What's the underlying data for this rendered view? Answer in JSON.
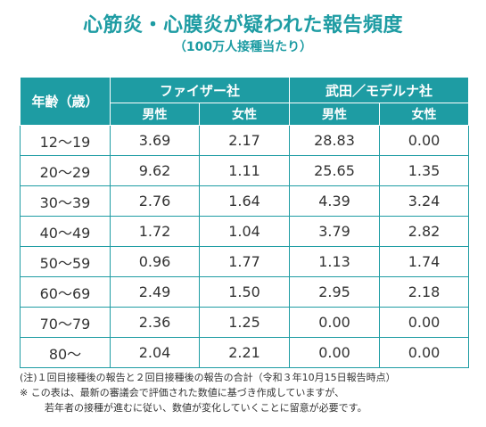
{
  "title": "心筋炎・心膜炎が疑われた報告頻度",
  "subtitle": "（100万人接種当たり）",
  "table": {
    "age_header": "年齢（歳）",
    "group_headers": [
      "ファイザー社",
      "武田／モデルナ社"
    ],
    "sub_headers": [
      "男性",
      "女性",
      "男性",
      "女性"
    ],
    "rows": [
      {
        "age": "12〜19",
        "values": [
          "3.69",
          "2.17",
          "28.83",
          "0.00"
        ]
      },
      {
        "age": "20〜29",
        "values": [
          "9.62",
          "1.11",
          "25.65",
          "1.35"
        ]
      },
      {
        "age": "30〜39",
        "values": [
          "2.76",
          "1.64",
          "4.39",
          "3.24"
        ]
      },
      {
        "age": "40〜49",
        "values": [
          "1.72",
          "1.04",
          "3.79",
          "2.82"
        ]
      },
      {
        "age": "50〜59",
        "values": [
          "0.96",
          "1.77",
          "1.13",
          "1.74"
        ]
      },
      {
        "age": "60〜69",
        "values": [
          "2.49",
          "1.50",
          "2.95",
          "2.18"
        ]
      },
      {
        "age": "70〜79",
        "values": [
          "2.36",
          "1.25",
          "0.00",
          "0.00"
        ]
      },
      {
        "age": "80〜",
        "values": [
          "2.04",
          "2.21",
          "0.00",
          "0.00"
        ]
      }
    ]
  },
  "notes": {
    "note1": "(注)１回目接種後の報告と２回目接種後の報告の合計（令和３年10月15日報告時点）",
    "note2": "※ この表は、最新の審議会で評価された数値に基づき作成していますが、",
    "note3": "若年者の接種が進むに従い、数値が変化していくことに留意が必要です。"
  },
  "colors": {
    "accent": "#1e9ca3"
  }
}
